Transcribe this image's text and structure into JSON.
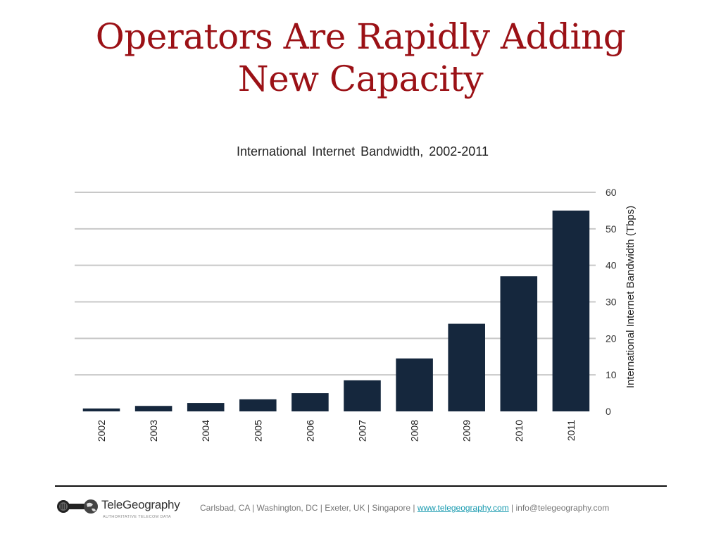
{
  "slide": {
    "title_line1": "Operators Are Rapidly Adding",
    "title_line2": "New Capacity"
  },
  "colors": {
    "title": "#9b1116",
    "bar": "#15273d",
    "grid": "#c8c8c8",
    "link": "#1a9bb0"
  },
  "chart_data": {
    "type": "bar",
    "title": "International Internet Bandwidth, 2002-2011",
    "xlabel": "",
    "ylabel": "International Internet Bandwidth (Tbps)",
    "categories": [
      "2002",
      "2003",
      "2004",
      "2005",
      "2006",
      "2007",
      "2008",
      "2009",
      "2010",
      "2011"
    ],
    "values": [
      0.8,
      1.5,
      2.3,
      3.3,
      5.0,
      8.5,
      14.5,
      24.0,
      37.0,
      55.0
    ],
    "ylim": [
      0,
      60
    ],
    "yticks": [
      0,
      10,
      20,
      30,
      40,
      50,
      60
    ],
    "y_axis_position": "right",
    "x_tick_rotation": "vertical",
    "grid": true,
    "legend": "none"
  },
  "footer": {
    "logo_name": "TeleGeography",
    "logo_tagline": "AUTHORITATIVE TELECOM DATA",
    "locations": "Carlsbad, CA | Washington, DC | Exeter, UK | Singapore | ",
    "website": "www.telegeography.com",
    "separator": " | ",
    "email": "info@telegeography.com"
  }
}
